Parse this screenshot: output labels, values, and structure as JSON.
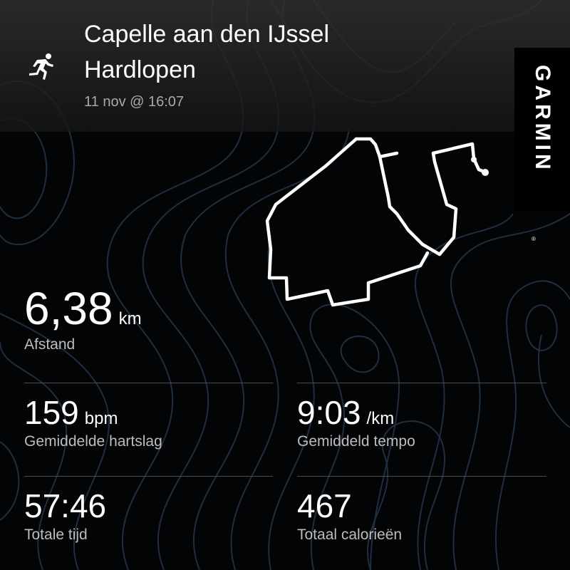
{
  "activity": {
    "location": "Capelle aan den IJssel",
    "type": "Hardlopen",
    "datetime": "11 nov @ 16:07",
    "icon": "running-person-icon"
  },
  "brand": {
    "logo_text": "GARMIN"
  },
  "stats": {
    "distance": {
      "value": "6,38",
      "unit": "km",
      "label": "Afstand"
    },
    "heart_rate": {
      "value": "159",
      "unit": "bpm",
      "label": "Gemiddelde hartslag"
    },
    "pace": {
      "value": "9:03",
      "unit": "/km",
      "label": "Gemiddeld tempo"
    },
    "time": {
      "value": "57:46",
      "label": "Totale tijd"
    },
    "calories": {
      "value": "467",
      "label": "Totaal calorieën"
    }
  },
  "colors": {
    "background": "#030405",
    "contour": "#1f2e40",
    "route": "#ffffff"
  }
}
